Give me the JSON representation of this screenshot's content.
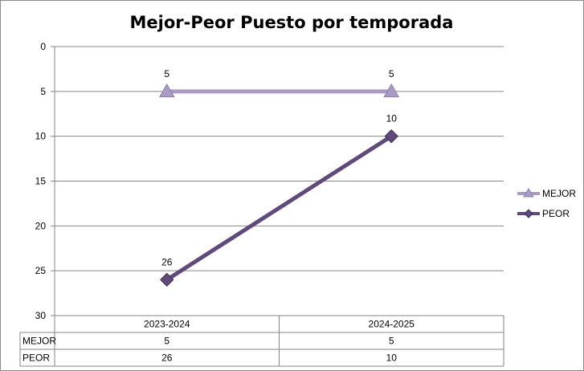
{
  "chart_data": {
    "type": "line",
    "title": "Mejor-Peor Puesto por temporada",
    "categories": [
      "2023-2024",
      "2024-2025"
    ],
    "series": [
      {
        "name": "MEJOR",
        "values": [
          5,
          5
        ],
        "color": "#a99bc3",
        "marker": "triangle"
      },
      {
        "name": "PEOR",
        "values": [
          26,
          10
        ],
        "color": "#604a7b",
        "marker": "diamond"
      }
    ],
    "ylim": [
      0,
      30
    ],
    "y_ticks": [
      0,
      5,
      10,
      15,
      20,
      25,
      30
    ],
    "y_inverted": true,
    "grid": true,
    "legend_position": "right",
    "data_table": true
  }
}
